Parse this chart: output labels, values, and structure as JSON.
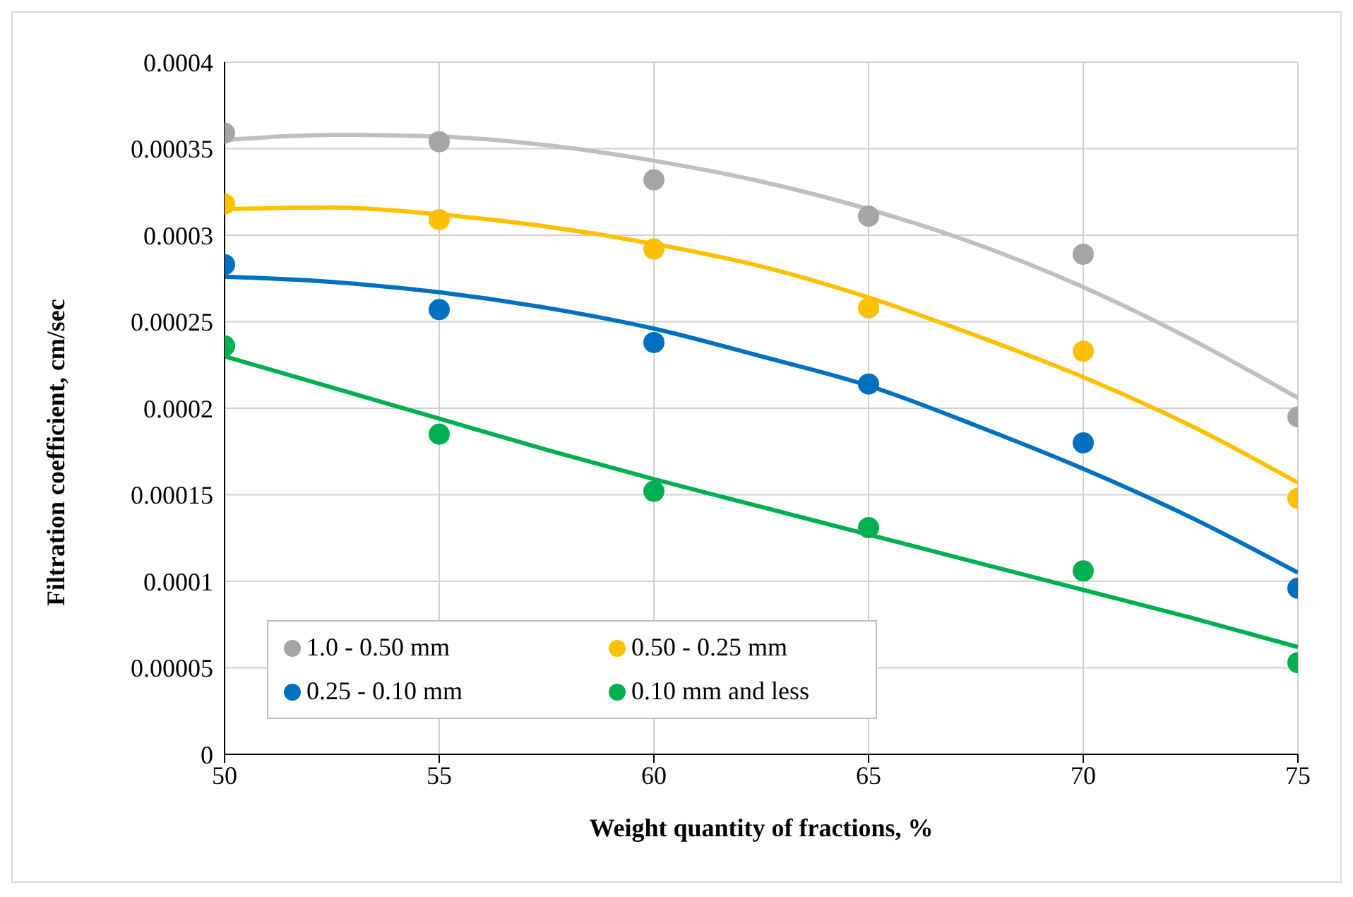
{
  "chart_data": {
    "type": "scatter",
    "xlabel": "Weight quantity of fractions, %",
    "ylabel": "Filtration coefficient, cm/sec",
    "xlim": [
      50,
      75
    ],
    "xticks": [
      50,
      55,
      60,
      65,
      70,
      75
    ],
    "ylim": [
      0,
      0.0004
    ],
    "yticks": [
      0,
      {
        "value": 5e-05,
        "label": "0.00005"
      },
      0.0001,
      0.00015,
      0.0002,
      0.00025,
      0.0003,
      0.00035,
      0.0004
    ],
    "grid": true,
    "legend": "bottom left",
    "marker": "circle",
    "line_style": "solid",
    "x": [
      50,
      55,
      60,
      65,
      70,
      75
    ],
    "series": [
      {
        "type": "line",
        "marker": "none",
        "color": "#bfbfbf",
        "x": [
          50,
          52.5,
          55,
          57.5,
          60,
          62.5,
          65,
          67.5,
          70,
          72.5,
          75
        ],
        "values": [
          0.000355,
          0.000358,
          0.000357,
          0.000352,
          0.000343,
          0.000331,
          0.000315,
          0.000295,
          0.00027,
          0.00024,
          0.000206
        ]
      },
      {
        "type": "line",
        "marker": "none",
        "color": "#ffc000",
        "x": [
          50,
          52.5,
          55,
          57.5,
          60,
          62.5,
          65,
          67.5,
          70,
          72.5,
          75
        ],
        "values": [
          0.000315,
          0.000316,
          0.000312,
          0.000305,
          0.000295,
          0.000282,
          0.000264,
          0.000242,
          0.000218,
          0.00019,
          0.000157
        ]
      },
      {
        "type": "line",
        "marker": "none",
        "color": "#0070c0",
        "x": [
          50,
          52.5,
          55,
          57.5,
          60,
          62.5,
          65,
          67.5,
          70,
          72.5,
          75
        ],
        "values": [
          0.000276,
          0.000273,
          0.000267,
          0.000258,
          0.000246,
          0.00023,
          0.000213,
          0.00019,
          0.000165,
          0.000137,
          0.000105
        ]
      },
      {
        "type": "line",
        "marker": "none",
        "color": "#00b050",
        "x": [
          50,
          52.5,
          55,
          57.5,
          60,
          62.5,
          65,
          67.5,
          70,
          72.5,
          75
        ],
        "values": [
          0.00023,
          0.000212,
          0.000194,
          0.000176,
          0.000159,
          0.000143,
          0.000127,
          0.000111,
          9.5e-05,
          7.9e-05,
          6.2e-05
        ]
      },
      {
        "name": "1.0 - 0.50 mm",
        "color": "#a5a5a5",
        "values": [
          0.000359,
          0.000354,
          0.000332,
          0.000311,
          0.000289,
          0.000195
        ]
      },
      {
        "name": "0.50 - 0.25 mm",
        "color": "#ffc000",
        "values": [
          0.000318,
          0.000309,
          0.000292,
          0.000258,
          0.000233,
          0.000148
        ]
      },
      {
        "name": "0.25 - 0.10 mm",
        "color": "#0070c0",
        "values": [
          0.000283,
          0.000257,
          0.000238,
          0.000214,
          0.00018,
          9.6e-05
        ]
      },
      {
        "name": "0.10 mm and less",
        "color": "#00b050",
        "values": [
          0.000236,
          0.000185,
          0.000152,
          0.000131,
          0.000106,
          5.3e-05
        ]
      }
    ]
  }
}
